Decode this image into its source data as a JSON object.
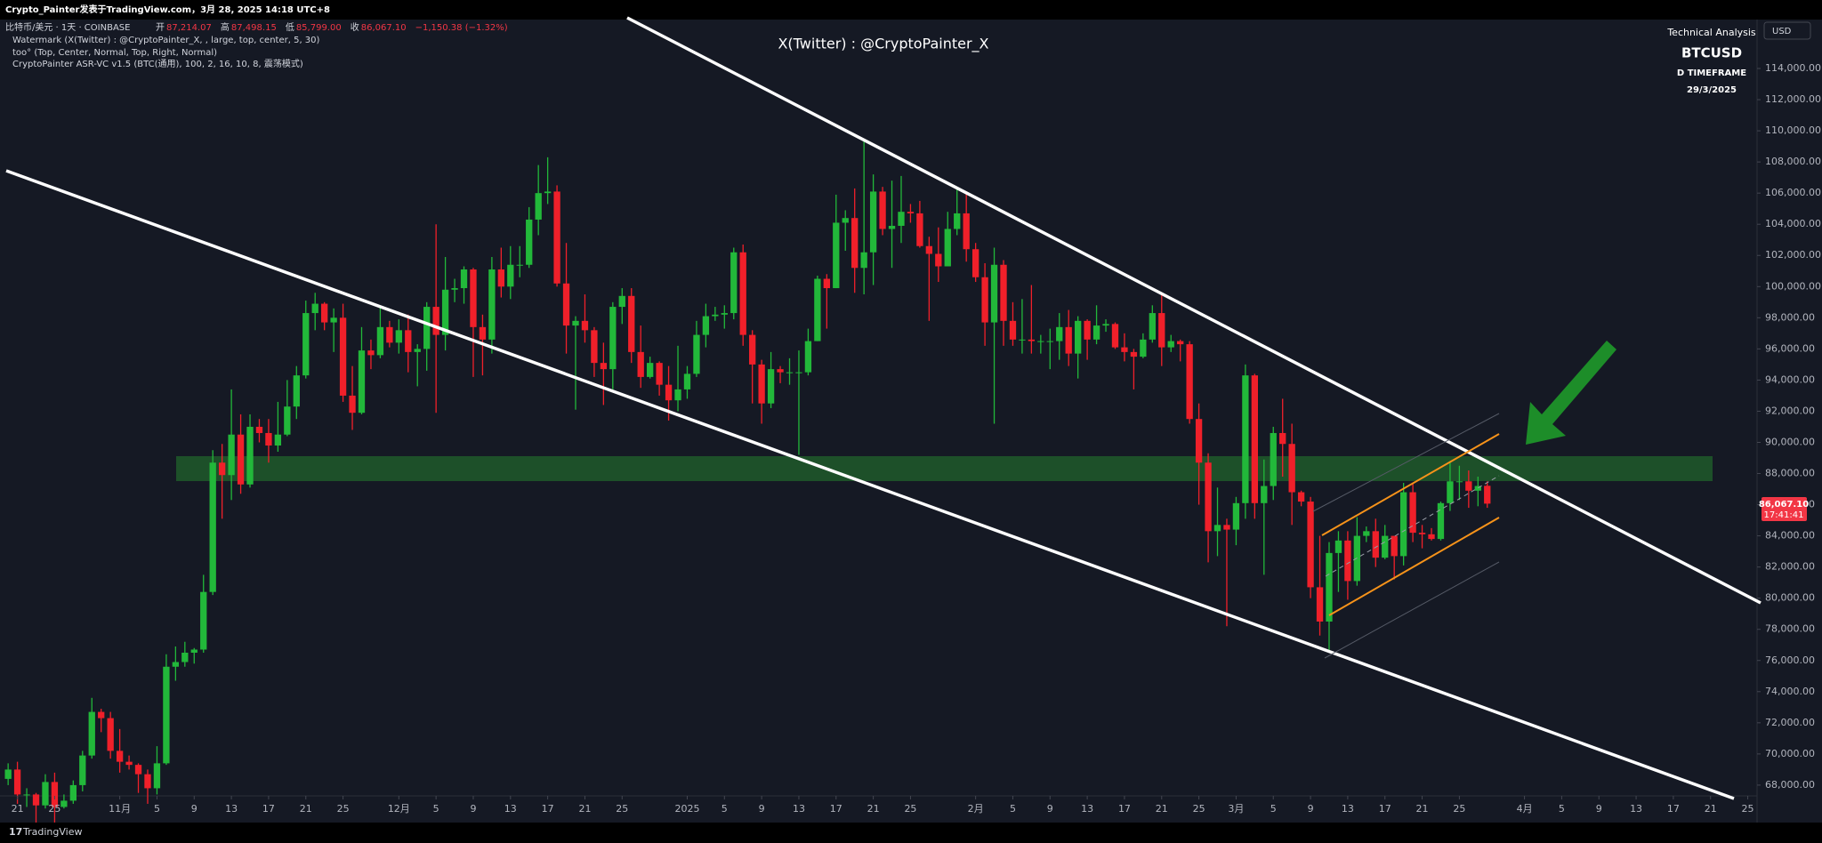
{
  "top_bar": {
    "text": "Crypto_Painter发表于TradingView.com，3月 28, 2025 14:18 UTC+8"
  },
  "legend": {
    "symbol": "比特币/美元 · 1天 · COINBASE",
    "ohlc": [
      {
        "label": "开",
        "value": "87,214.07"
      },
      {
        "label": "高",
        "value": "87,498.15"
      },
      {
        "label": "低",
        "value": "85,799.00"
      },
      {
        "label": "收",
        "value": "86,067.10"
      }
    ],
    "change": "−1,150.38 (−1.32%)",
    "indicators": [
      "Watermark (X(Twitter) : @CryptoPainter_X, , large, top, center, 5, 30)",
      "too° (Top, Center, Normal, Top, Right, Normal)",
      "CryptoPainter ASR-VC v1.5 (BTC(通用), 100, 2, 16, 10, 8, 震荡模式)"
    ]
  },
  "watermark": "X(Twitter) : @CryptoPainter_X",
  "info_box": {
    "title": "Technical Analysis",
    "symbol": "BTCUSD",
    "timeframe": "D TIMEFRAME",
    "date": "29/3/2025"
  },
  "currency": "USD",
  "price_label": {
    "price": "86,067.10",
    "countdown": "17:41:41"
  },
  "footer": "TradingView",
  "chart_data": {
    "type": "candlestick",
    "up_color": "#22b83a",
    "down_color": "#f0202a",
    "xlim": [
      -1.3,
      187
    ],
    "ylim": [
      67310,
      117140
    ],
    "xticks": [
      {
        "value": 0,
        "label": "21"
      },
      {
        "value": 4,
        "label": "25"
      },
      {
        "value": 11,
        "label": "11月"
      },
      {
        "value": 15,
        "label": "5"
      },
      {
        "value": 19,
        "label": "9"
      },
      {
        "value": 23,
        "label": "13"
      },
      {
        "value": 27,
        "label": "17"
      },
      {
        "value": 31,
        "label": "21"
      },
      {
        "value": 35,
        "label": "25"
      },
      {
        "value": 41,
        "label": "12月"
      },
      {
        "value": 45,
        "label": "5"
      },
      {
        "value": 49,
        "label": "9"
      },
      {
        "value": 53,
        "label": "13"
      },
      {
        "value": 57,
        "label": "17"
      },
      {
        "value": 61,
        "label": "21"
      },
      {
        "value": 65,
        "label": "25"
      },
      {
        "value": 72,
        "label": "2025"
      },
      {
        "value": 76,
        "label": "5"
      },
      {
        "value": 80,
        "label": "9"
      },
      {
        "value": 84,
        "label": "13"
      },
      {
        "value": 88,
        "label": "17"
      },
      {
        "value": 92,
        "label": "21"
      },
      {
        "value": 96,
        "label": "25"
      },
      {
        "value": 103,
        "label": "2月"
      },
      {
        "value": 107,
        "label": "5"
      },
      {
        "value": 111,
        "label": "9"
      },
      {
        "value": 115,
        "label": "13"
      },
      {
        "value": 119,
        "label": "17"
      },
      {
        "value": 123,
        "label": "21"
      },
      {
        "value": 127,
        "label": "25"
      },
      {
        "value": 131,
        "label": "3月"
      },
      {
        "value": 135,
        "label": "5"
      },
      {
        "value": 139,
        "label": "9"
      },
      {
        "value": 143,
        "label": "13"
      },
      {
        "value": 147,
        "label": "17"
      },
      {
        "value": 151,
        "label": "21"
      },
      {
        "value": 155,
        "label": "25"
      },
      {
        "value": 162,
        "label": "4月"
      },
      {
        "value": 166,
        "label": "5"
      },
      {
        "value": 170,
        "label": "9"
      },
      {
        "value": 174,
        "label": "13"
      },
      {
        "value": 178,
        "label": "17"
      },
      {
        "value": 182,
        "label": "21"
      },
      {
        "value": 186,
        "label": "25"
      }
    ],
    "yticks": [
      {
        "value": 68000,
        "label": "68,000.00"
      },
      {
        "value": 70000,
        "label": "70,000.00"
      },
      {
        "value": 72000,
        "label": "72,000.00"
      },
      {
        "value": 74000,
        "label": "74,000.00"
      },
      {
        "value": 76000,
        "label": "76,000.00"
      },
      {
        "value": 78000,
        "label": "78,000.00"
      },
      {
        "value": 80000,
        "label": "80,000.00"
      },
      {
        "value": 82000,
        "label": "82,000.00"
      },
      {
        "value": 84000,
        "label": "84,000.00"
      },
      {
        "value": 86000,
        "label": "86,000.00"
      },
      {
        "value": 88000,
        "label": "88,000.00"
      },
      {
        "value": 90000,
        "label": "90,000.00"
      },
      {
        "value": 92000,
        "label": "92,000.00"
      },
      {
        "value": 94000,
        "label": "94,000.00"
      },
      {
        "value": 96000,
        "label": "96,000.00"
      },
      {
        "value": 98000,
        "label": "98,000.00"
      },
      {
        "value": 100000,
        "label": "100,000.00"
      },
      {
        "value": 102000,
        "label": "102,000.00"
      },
      {
        "value": 104000,
        "label": "104,000.00"
      },
      {
        "value": 106000,
        "label": "106,000.00"
      },
      {
        "value": 108000,
        "label": "108,000.00"
      },
      {
        "value": 110000,
        "label": "110,000.00"
      },
      {
        "value": 112000,
        "label": "112,000.00"
      },
      {
        "value": 114000,
        "label": "114,000.00"
      }
    ],
    "x": [
      -1,
      0,
      1,
      2,
      3,
      4,
      5,
      6,
      7,
      8,
      9,
      10,
      11,
      12,
      13,
      14,
      15,
      16,
      17,
      18,
      19,
      20,
      21,
      22,
      23,
      24,
      25,
      26,
      27,
      28,
      29,
      30,
      31,
      32,
      33,
      34,
      35,
      36,
      37,
      38,
      39,
      40,
      41,
      42,
      43,
      44,
      45,
      46,
      47,
      48,
      49,
      50,
      51,
      52,
      53,
      54,
      55,
      56,
      57,
      58,
      59,
      60,
      61,
      62,
      63,
      64,
      65,
      66,
      67,
      68,
      69,
      70,
      71,
      72,
      73,
      74,
      75,
      76,
      77,
      78,
      79,
      80,
      81,
      82,
      83,
      84,
      85,
      86,
      87,
      88,
      89,
      90,
      91,
      92,
      93,
      94,
      95,
      96,
      97,
      98,
      99,
      100,
      101,
      102,
      103,
      104,
      105,
      106,
      107,
      108,
      109,
      110,
      111,
      112,
      113,
      114,
      115,
      116,
      117,
      118,
      119,
      120,
      121,
      122,
      123,
      124,
      125,
      126,
      127,
      128,
      129,
      130,
      131,
      132,
      133,
      134,
      135,
      136,
      137,
      138,
      139,
      140,
      141,
      142,
      143,
      144,
      145,
      146,
      147,
      148,
      149,
      150,
      151,
      152,
      153,
      154,
      155,
      156,
      157,
      158
    ],
    "ohlc": [
      [
        68400,
        69400,
        68000,
        69000
      ],
      [
        69000,
        69500,
        66800,
        67400
      ],
      [
        67400,
        67800,
        66600,
        67400
      ],
      [
        67400,
        67500,
        65300,
        66700
      ],
      [
        66700,
        68700,
        66500,
        68200
      ],
      [
        68200,
        68800,
        65600,
        66600
      ],
      [
        66600,
        67400,
        66500,
        67000
      ],
      [
        67000,
        68300,
        66800,
        68000
      ],
      [
        68000,
        70200,
        67600,
        69900
      ],
      [
        69900,
        73600,
        69700,
        72700
      ],
      [
        72700,
        72900,
        71400,
        72300
      ],
      [
        72300,
        72700,
        69700,
        70200
      ],
      [
        70200,
        71600,
        68800,
        69500
      ],
      [
        69500,
        69900,
        69000,
        69300
      ],
      [
        69300,
        69400,
        67500,
        68700
      ],
      [
        68700,
        69000,
        66800,
        67800
      ],
      [
        67800,
        70500,
        67400,
        69400
      ],
      [
        69400,
        76400,
        69300,
        75600
      ],
      [
        75600,
        76900,
        74700,
        75900
      ],
      [
        75900,
        77200,
        75600,
        76500
      ],
      [
        76500,
        76800,
        75800,
        76700
      ],
      [
        76700,
        81500,
        76500,
        80400
      ],
      [
        80400,
        89500,
        80200,
        88700
      ],
      [
        88700,
        89900,
        85100,
        87900
      ],
      [
        87900,
        93400,
        86300,
        90500
      ],
      [
        90500,
        91800,
        86700,
        87300
      ],
      [
        87300,
        91800,
        87100,
        91000
      ],
      [
        91000,
        91500,
        90000,
        90600
      ],
      [
        90600,
        91500,
        88700,
        89800
      ],
      [
        89800,
        92600,
        89400,
        90500
      ],
      [
        90500,
        94000,
        90400,
        92300
      ],
      [
        92300,
        94900,
        91500,
        94300
      ],
      [
        94300,
        99100,
        94100,
        98300
      ],
      [
        98300,
        99600,
        97200,
        98900
      ],
      [
        98900,
        99000,
        97200,
        97700
      ],
      [
        97700,
        98600,
        95800,
        98000
      ],
      [
        98000,
        98900,
        92600,
        93000
      ],
      [
        93000,
        94900,
        90800,
        91900
      ],
      [
        91900,
        97400,
        91800,
        95900
      ],
      [
        95900,
        96600,
        94700,
        95600
      ],
      [
        95600,
        98700,
        95400,
        97400
      ],
      [
        97400,
        97800,
        96100,
        96400
      ],
      [
        96400,
        97900,
        95700,
        97200
      ],
      [
        97200,
        98200,
        94500,
        95800
      ],
      [
        95800,
        96300,
        93600,
        96000
      ],
      [
        96000,
        99000,
        94600,
        98700
      ],
      [
        98700,
        104000,
        91900,
        96900
      ],
      [
        96900,
        101900,
        95900,
        99800
      ],
      [
        99800,
        100500,
        99000,
        99900
      ],
      [
        99900,
        101300,
        98900,
        101100
      ],
      [
        101100,
        101200,
        94200,
        97400
      ],
      [
        97400,
        98200,
        94300,
        96600
      ],
      [
        96600,
        101900,
        95700,
        101100
      ],
      [
        101100,
        102500,
        99300,
        100000
      ],
      [
        100000,
        102600,
        99200,
        101400
      ],
      [
        101400,
        102600,
        100600,
        101400
      ],
      [
        101400,
        105100,
        101200,
        104300
      ],
      [
        104300,
        107800,
        103300,
        106000
      ],
      [
        106000,
        108300,
        105300,
        106100
      ],
      [
        106100,
        106500,
        100000,
        100200
      ],
      [
        100200,
        102800,
        95700,
        97500
      ],
      [
        97500,
        98100,
        92100,
        97800
      ],
      [
        97800,
        99500,
        96400,
        97200
      ],
      [
        97200,
        97400,
        94200,
        95100
      ],
      [
        95100,
        96400,
        92400,
        94700
      ],
      [
        94700,
        99000,
        93400,
        98700
      ],
      [
        98700,
        99900,
        97600,
        99400
      ],
      [
        99400,
        99900,
        95100,
        95800
      ],
      [
        95800,
        97500,
        93500,
        94200
      ],
      [
        94200,
        95500,
        94100,
        95100
      ],
      [
        95100,
        95200,
        93000,
        93700
      ],
      [
        93700,
        94900,
        91400,
        92700
      ],
      [
        92700,
        96200,
        92000,
        93400
      ],
      [
        93400,
        94900,
        92800,
        94400
      ],
      [
        94400,
        97800,
        94200,
        96900
      ],
      [
        96900,
        98900,
        96100,
        98100
      ],
      [
        98100,
        98700,
        97800,
        98200
      ],
      [
        98200,
        98800,
        97300,
        98300
      ],
      [
        98300,
        102500,
        97900,
        102200
      ],
      [
        102200,
        102700,
        96200,
        96900
      ],
      [
        96900,
        97200,
        92500,
        95000
      ],
      [
        95000,
        95300,
        91200,
        92500
      ],
      [
        92500,
        95800,
        92200,
        94700
      ],
      [
        94700,
        94900,
        93800,
        94500
      ],
      [
        94500,
        95400,
        93700,
        94500
      ],
      [
        94500,
        95900,
        89200,
        94500
      ],
      [
        94500,
        97300,
        94300,
        96500
      ],
      [
        96500,
        100700,
        96500,
        100500
      ],
      [
        100500,
        100800,
        97300,
        99900
      ],
      [
        99900,
        105900,
        99900,
        104100
      ],
      [
        104100,
        104900,
        102300,
        104400
      ],
      [
        104400,
        106300,
        99600,
        101200
      ],
      [
        101200,
        109400,
        99500,
        102200
      ],
      [
        102200,
        107200,
        100100,
        106100
      ],
      [
        106100,
        106400,
        103300,
        103700
      ],
      [
        103700,
        106800,
        101200,
        103900
      ],
      [
        103900,
        107100,
        102800,
        104800
      ],
      [
        104800,
        105300,
        104100,
        104700
      ],
      [
        104700,
        105500,
        102500,
        102600
      ],
      [
        102600,
        103200,
        97800,
        102100
      ],
      [
        102100,
        103800,
        100300,
        101300
      ],
      [
        101300,
        104800,
        101300,
        103700
      ],
      [
        103700,
        106400,
        103300,
        104700
      ],
      [
        104700,
        106100,
        101600,
        102400
      ],
      [
        102400,
        102800,
        100300,
        100600
      ],
      [
        100600,
        101500,
        96200,
        97700
      ],
      [
        97700,
        102500,
        91200,
        101400
      ],
      [
        101400,
        101700,
        96200,
        97800
      ],
      [
        97800,
        99000,
        96200,
        96600
      ],
      [
        96600,
        99200,
        95700,
        96600
      ],
      [
        96600,
        100100,
        95700,
        96500
      ],
      [
        96500,
        96900,
        95700,
        96500
      ],
      [
        96500,
        97300,
        94700,
        96500
      ],
      [
        96500,
        98300,
        95300,
        97400
      ],
      [
        97400,
        98500,
        94900,
        95700
      ],
      [
        95700,
        98100,
        94100,
        97800
      ],
      [
        97800,
        97900,
        95300,
        96600
      ],
      [
        96600,
        98800,
        96300,
        97500
      ],
      [
        97500,
        97900,
        97100,
        97600
      ],
      [
        97600,
        97700,
        96000,
        96100
      ],
      [
        96100,
        97000,
        95200,
        95800
      ],
      [
        95800,
        96000,
        93400,
        95500
      ],
      [
        95500,
        97000,
        95400,
        96600
      ],
      [
        96600,
        98800,
        96400,
        98300
      ],
      [
        98300,
        99500,
        94900,
        96100
      ],
      [
        96100,
        96900,
        95800,
        96500
      ],
      [
        96500,
        96600,
        95200,
        96300
      ],
      [
        96300,
        96500,
        91200,
        91500
      ],
      [
        91500,
        92500,
        86000,
        88700
      ],
      [
        88700,
        89300,
        82300,
        84300
      ],
      [
        84300,
        87100,
        82700,
        84700
      ],
      [
        84700,
        85100,
        78200,
        84400
      ],
      [
        84400,
        86500,
        83400,
        86100
      ],
      [
        86100,
        95000,
        85100,
        94300
      ],
      [
        94300,
        94400,
        85100,
        86100
      ],
      [
        86100,
        88900,
        81500,
        87200
      ],
      [
        87200,
        91000,
        86300,
        90600
      ],
      [
        90600,
        92800,
        87800,
        89900
      ],
      [
        89900,
        91200,
        84700,
        86800
      ],
      [
        86800,
        86900,
        85900,
        86200
      ],
      [
        86200,
        86500,
        80000,
        80700
      ],
      [
        80700,
        84000,
        77600,
        78500
      ],
      [
        78500,
        83600,
        76600,
        82900
      ],
      [
        82900,
        84300,
        80400,
        83700
      ],
      [
        83700,
        84300,
        79900,
        81100
      ],
      [
        81100,
        85200,
        80800,
        84000
      ],
      [
        84000,
        84600,
        83600,
        84300
      ],
      [
        84300,
        85100,
        82000,
        82600
      ],
      [
        82600,
        84700,
        82500,
        84000
      ],
      [
        84000,
        84000,
        81200,
        82700
      ],
      [
        82700,
        87400,
        82100,
        86800
      ],
      [
        86800,
        87400,
        83600,
        84200
      ],
      [
        84200,
        84700,
        83200,
        84100
      ],
      [
        84100,
        84500,
        83700,
        83800
      ],
      [
        83800,
        86200,
        83700,
        86100
      ],
      [
        86100,
        88800,
        85600,
        87500
      ],
      [
        87500,
        88500,
        86300,
        87500
      ],
      [
        87500,
        88200,
        85800,
        86900
      ],
      [
        86900,
        87800,
        85900,
        87200
      ],
      [
        87214.07,
        87498.15,
        85799,
        86067.1
      ]
    ]
  }
}
